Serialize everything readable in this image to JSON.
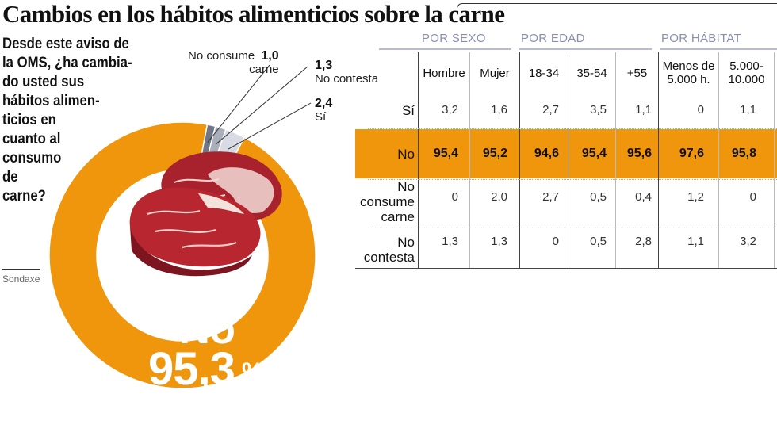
{
  "title": "Cambios en los hábitos alimenticios sobre la carne",
  "question_lines": [
    "Desde este aviso de",
    "la OMS, ¿ha cambia-",
    "do usted sus",
    "hábitos alimen-",
    "ticios en",
    "cuanto al",
    "consumo",
    "de",
    "carne?"
  ],
  "source": "Sondaxe",
  "colors": {
    "orange": "#f0960d",
    "no_consume": "#6f7686",
    "no_contesta": "#a9aebb",
    "si": "#d8dbe3"
  },
  "chart_data": {
    "type": "pie",
    "slices": [
      {
        "label": "No",
        "value": 95.3,
        "display": "95,3"
      },
      {
        "label": "No consume carne",
        "value": 1.0,
        "display": "1,0"
      },
      {
        "label": "No contesta",
        "value": 1.3,
        "display": "1,3"
      },
      {
        "label": "Sí",
        "value": 2.4,
        "display": "2,4"
      }
    ],
    "center_label": "No",
    "center_value": "95,3",
    "center_unit": "%",
    "labels": {
      "no_consume_1": "No consume",
      "no_consume_2": "carne",
      "no_consume_val": "1,0",
      "no_contesta_val": "1,3",
      "no_contesta_txt": "No contesta",
      "si_val": "2,4",
      "si_txt": "Sí"
    }
  },
  "table": {
    "groups": [
      "POR SEXO",
      "POR EDAD",
      "POR HÁBITAT"
    ],
    "columns": [
      {
        "lines": [
          "Hombre"
        ]
      },
      {
        "lines": [
          "Mujer"
        ]
      },
      {
        "lines": [
          "18-34"
        ]
      },
      {
        "lines": [
          "35-54"
        ]
      },
      {
        "lines": [
          "+55"
        ]
      },
      {
        "lines": [
          "Menos de",
          "5.000 h."
        ]
      },
      {
        "lines": [
          "5.000-",
          "10.000"
        ]
      }
    ],
    "rows": [
      {
        "label_lines": [
          "Sí"
        ],
        "values": [
          "3,2",
          "1,6",
          "2,7",
          "3,5",
          "1,1",
          "0",
          "1,1"
        ]
      },
      {
        "label_lines": [
          "No"
        ],
        "values": [
          "95,4",
          "95,2",
          "94,6",
          "95,4",
          "95,6",
          "97,6",
          "95,8"
        ]
      },
      {
        "label_lines": [
          "No",
          "consume",
          "carne"
        ],
        "values": [
          "0",
          "2,0",
          "2,7",
          "0,5",
          "0,4",
          "1,2",
          "0"
        ]
      },
      {
        "label_lines": [
          "No",
          "contesta"
        ],
        "values": [
          "1,3",
          "1,3",
          "0",
          "0,5",
          "2,8",
          "1,1",
          "3,2"
        ]
      }
    ]
  }
}
